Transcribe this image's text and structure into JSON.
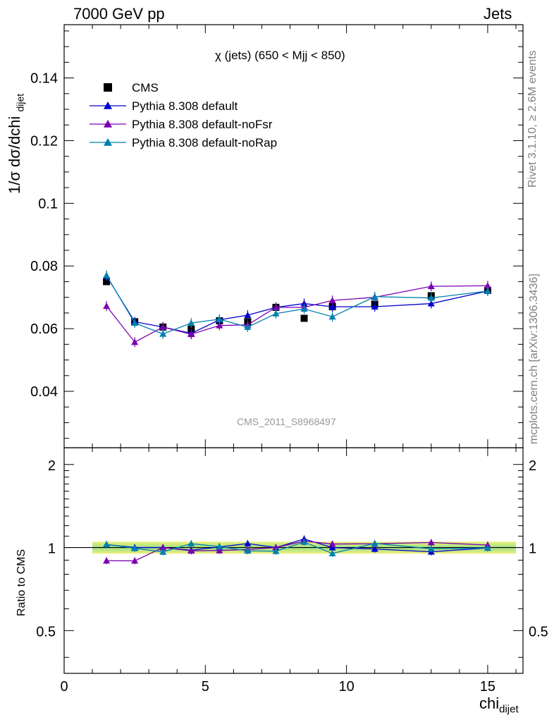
{
  "header": {
    "left": "7000 GeV pp",
    "right": "Jets"
  },
  "side": {
    "rivet": "Rivet 3.1.10, ≥ 2.6M events",
    "mcplots": "mcplots.cern.ch [arXiv:1306.3436]"
  },
  "plot": {
    "title": "χ (jets) (650 < Mjj <  850)",
    "watermark": "CMS_2011_S8968497",
    "ylabel_main": "1/σ dσ/dchi",
    "ylabel_sub1": "dijet",
    "ylabel_sub2": "dijet",
    "ylabel_sub3": "dijet",
    "ratio_ylabel": "Ratio to CMS",
    "xlabel": "chi",
    "xlabel_sub": "dijet"
  },
  "legend": [
    {
      "label": "CMS",
      "color": "#000000",
      "marker": "square"
    },
    {
      "label": "Pythia 8.308 default",
      "color": "#0000cc",
      "marker": "triangle"
    },
    {
      "label": "Pythia 8.308 default-noFsr",
      "color": "#7a00b0",
      "marker": "triangle"
    },
    {
      "label": "Pythia 8.308 default-noRap",
      "color": "#0080b0",
      "marker": "triangle"
    }
  ],
  "chart_data": {
    "type": "scatter",
    "x": [
      1.5,
      2.5,
      3.5,
      4.5,
      5.5,
      6.5,
      7.5,
      8.5,
      9.5,
      11,
      13,
      15
    ],
    "xlim": [
      0,
      16.25
    ],
    "ylim": [
      0.022,
      0.157
    ],
    "ratio_ylim": [
      0.35,
      2.3
    ],
    "xticks": [
      0,
      5,
      10,
      15
    ],
    "yticks": [
      0.04,
      0.06,
      0.08,
      0.1,
      0.12,
      0.14
    ],
    "yticklabels": [
      "0.04",
      "0.06",
      "0.08",
      "0.1",
      "0.12",
      "0.14"
    ],
    "ratio_yticks": [
      0.5,
      1,
      2
    ],
    "ratio_yticklabels": [
      "0.5",
      "1",
      "2"
    ],
    "series": [
      {
        "name": "CMS",
        "values": [
          0.075,
          0.0622,
          0.0605,
          0.0598,
          0.0625,
          0.0622,
          0.0668,
          0.0633,
          0.067,
          0.0678,
          0.0705,
          0.0722
        ]
      },
      {
        "name": "Pythia 8.308 default",
        "values": [
          0.0768,
          0.0622,
          0.0605,
          0.0585,
          0.0628,
          0.0643,
          0.0668,
          0.068,
          0.067,
          0.067,
          0.068,
          0.072
        ]
      },
      {
        "name": "Pythia 8.308 default-noFsr",
        "values": [
          0.0672,
          0.0557,
          0.0605,
          0.0582,
          0.061,
          0.0612,
          0.0668,
          0.0668,
          0.069,
          0.07,
          0.0735,
          0.0737
        ]
      },
      {
        "name": "Pythia 8.308 default-noRap",
        "values": [
          0.077,
          0.0618,
          0.0583,
          0.0618,
          0.063,
          0.0605,
          0.0648,
          0.0663,
          0.0638,
          0.0702,
          0.0698,
          0.072
        ]
      }
    ],
    "ratio_series": [
      {
        "name": "Pythia 8.308 default",
        "values": [
          1.025,
          1.0,
          1.0,
          0.978,
          1.005,
          1.034,
          1.0,
          1.074,
          1.0,
          0.988,
          0.965,
          0.997
        ]
      },
      {
        "name": "Pythia 8.308 default-noFsr",
        "values": [
          0.896,
          0.895,
          1.0,
          0.973,
          0.976,
          0.984,
          1.0,
          1.055,
          1.03,
          1.032,
          1.043,
          1.021
        ]
      },
      {
        "name": "Pythia 8.308 default-noRap",
        "values": [
          1.027,
          0.994,
          0.964,
          1.033,
          1.008,
          0.973,
          0.97,
          1.047,
          0.952,
          1.035,
          0.99,
          0.997
        ]
      }
    ]
  }
}
